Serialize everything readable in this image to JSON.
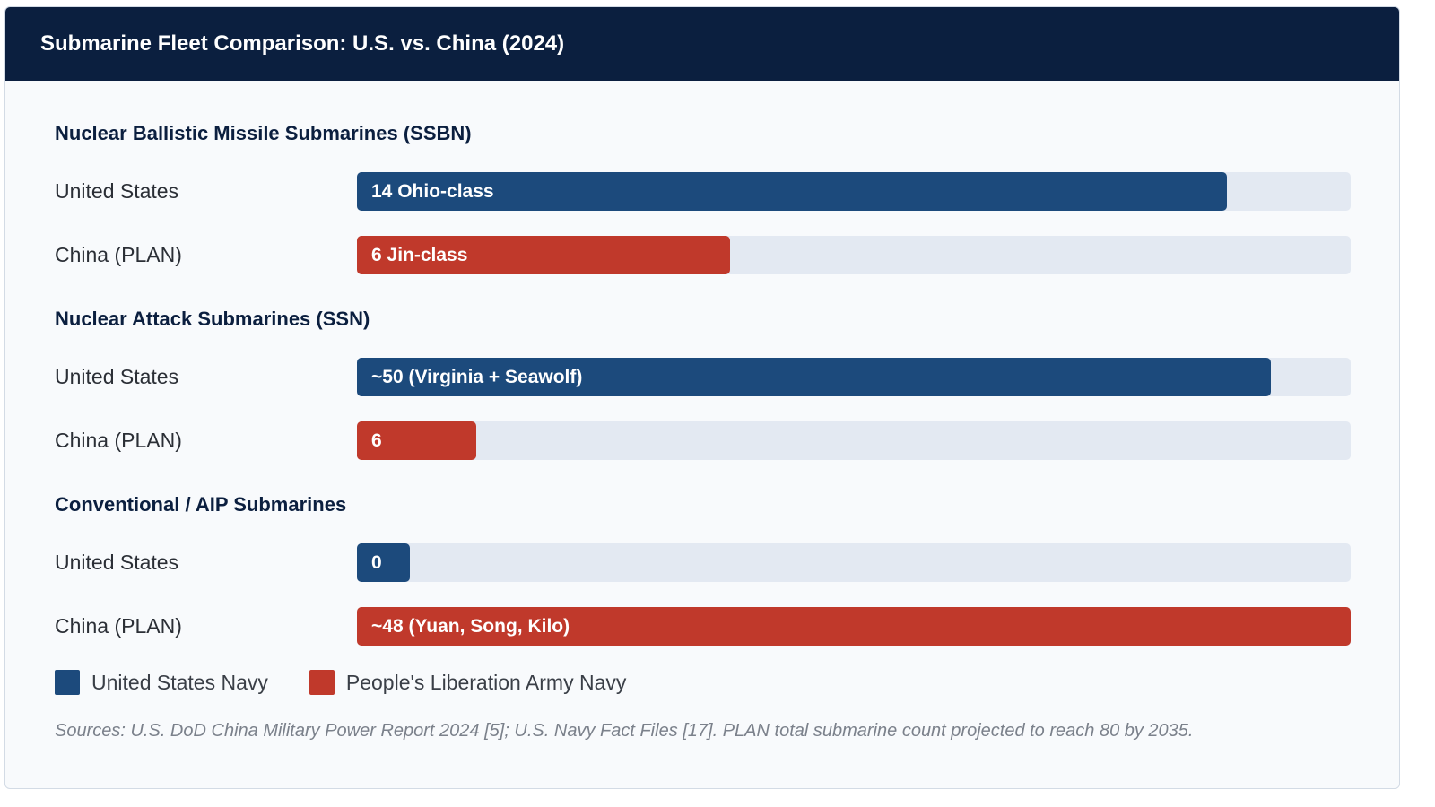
{
  "header": {
    "title": "Submarine Fleet Comparison: U.S. vs. China (2024)"
  },
  "colors": {
    "us": "#1c4a7c",
    "china": "#c0392b",
    "track": "#e3e9f2",
    "header_bg": "#0b1f3f"
  },
  "legend": [
    {
      "label": "United States Navy",
      "color": "#1c4a7c"
    },
    {
      "label": "People's Liberation Army Navy",
      "color": "#c0392b"
    }
  ],
  "sources": "Sources: U.S. DoD China Military Power Report 2024 [5]; U.S. Navy Fact Files [17]. PLAN total submarine count projected to reach 80 by 2035.",
  "chart_data": {
    "type": "bar",
    "orientation": "horizontal",
    "title": "Submarine Fleet Comparison: U.S. vs. China (2024)",
    "groups": [
      {
        "title": "Nuclear Ballistic Missile Submarines (SSBN)",
        "rows": [
          {
            "country": "United States",
            "bar_label": "14 Ohio-class",
            "fill_fraction": 0.875,
            "series": "us"
          },
          {
            "country": "China (PLAN)",
            "bar_label": "6 Jin-class",
            "fill_fraction": 0.375,
            "series": "china"
          }
        ]
      },
      {
        "title": "Nuclear Attack Submarines (SSN)",
        "rows": [
          {
            "country": "United States",
            "bar_label": "~50 (Virginia + Seawolf)",
            "fill_fraction": 0.92,
            "series": "us"
          },
          {
            "country": "China (PLAN)",
            "bar_label": "6",
            "fill_fraction": 0.12,
            "series": "china"
          }
        ]
      },
      {
        "title": "Conventional / AIP Submarines",
        "rows": [
          {
            "country": "United States",
            "bar_label": "0",
            "fill_fraction": 0.053,
            "series": "us"
          },
          {
            "country": "China (PLAN)",
            "bar_label": "~48 (Yuan, Song, Kilo)",
            "fill_fraction": 1.0,
            "series": "china"
          }
        ]
      }
    ]
  }
}
